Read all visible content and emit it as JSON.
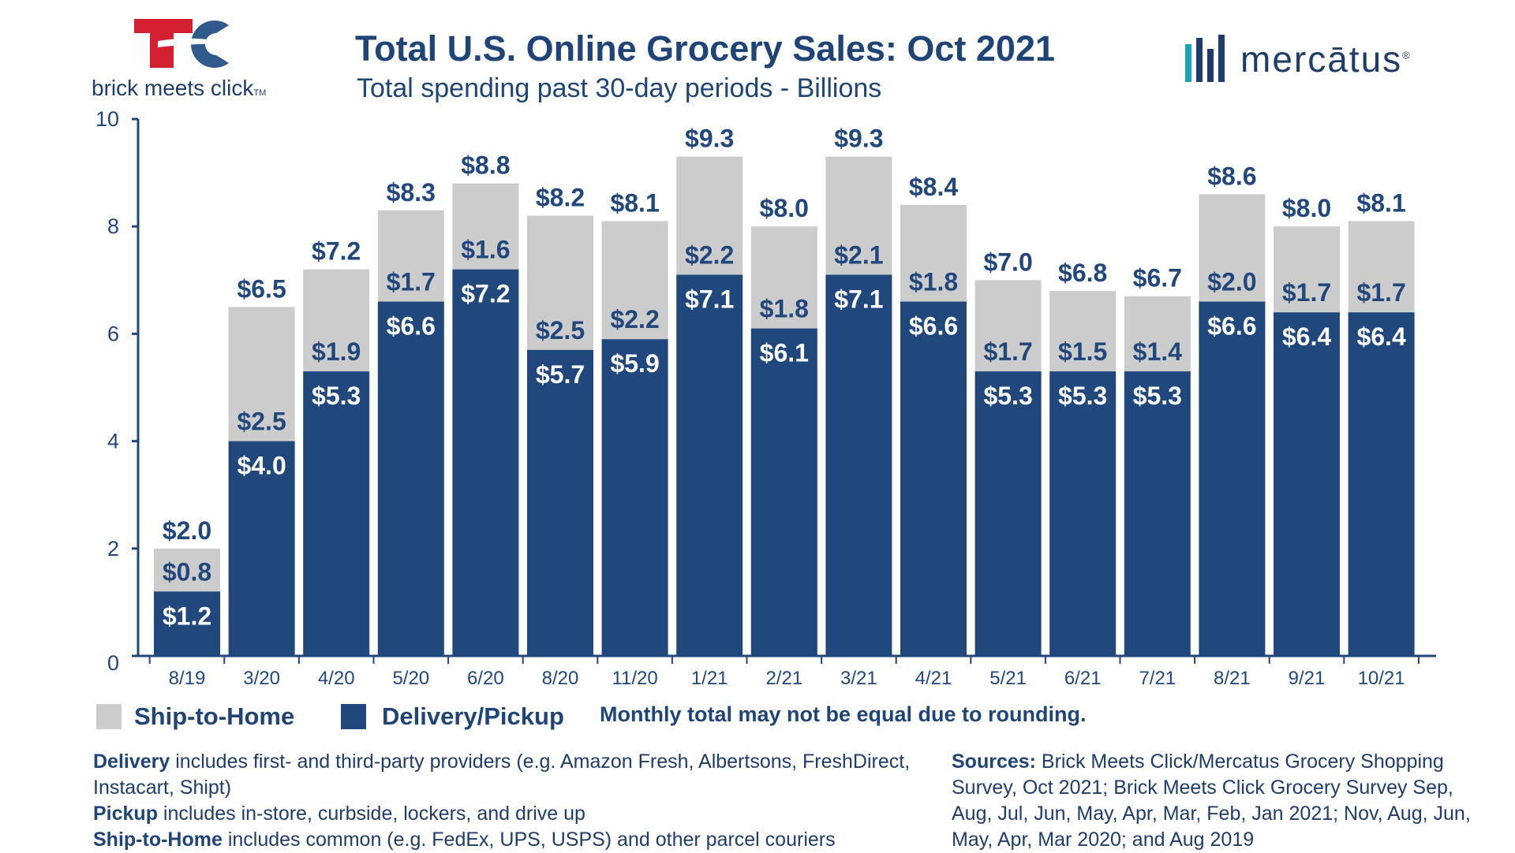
{
  "header": {
    "title": "Total U.S. Online Grocery Sales: Oct 2021",
    "subtitle": "Total spending past 30-day periods - Billions"
  },
  "logos": {
    "bmc_text": "brick meets click",
    "bmc_tm": "TM",
    "mercatus_text": "mercātus",
    "mercatus_reg": "®"
  },
  "colors": {
    "delivery": "#21487d",
    "ship": "#cccccc",
    "axis": "#21487d",
    "title": "#1f4477",
    "logo_red": "#d31f2f",
    "logo_blue": "#2f5a8c",
    "mercatus_teal": "#1aa3b5"
  },
  "legend": {
    "ship_label": "Ship-to-Home",
    "delivery_label": "Delivery/Pickup",
    "rounding_note": "Monthly total may not be equal due to rounding."
  },
  "notes": {
    "delivery_term": "Delivery",
    "delivery_text": " includes first- and third-party providers (e.g. Amazon Fresh, Albertsons, FreshDirect, Instacart, Shipt)",
    "pickup_term": "Pickup",
    "pickup_text": " includes in-store, curbside, lockers, and drive up",
    "ship_term": "Ship-to-Home",
    "ship_text": " includes common (e.g. FedEx, UPS, USPS) and other parcel couriers",
    "sources_term": "Sources:",
    "sources_text": " Brick Meets Click/Mercatus Grocery Shopping Survey, Oct 2021; Brick Meets Click Grocery Survey Sep, Aug, Jul, Jun, May, Apr, Mar, Feb, Jan 2021; Nov, Aug, Jun, May, Apr, Mar 2020; and Aug 2019"
  },
  "chart_data": {
    "type": "bar",
    "stacked": true,
    "categories": [
      "8/19",
      "3/20",
      "4/20",
      "5/20",
      "6/20",
      "8/20",
      "11/20",
      "1/21",
      "2/21",
      "3/21",
      "4/21",
      "5/21",
      "6/21",
      "7/21",
      "8/21",
      "9/21",
      "10/21"
    ],
    "series": [
      {
        "name": "Delivery/Pickup",
        "values": [
          1.2,
          4.0,
          5.3,
          6.6,
          7.2,
          5.7,
          5.9,
          7.1,
          6.1,
          7.1,
          6.6,
          5.3,
          5.3,
          5.3,
          6.6,
          6.4,
          6.4
        ],
        "labels": [
          "$1.2",
          "$4.0",
          "$5.3",
          "$6.6",
          "$7.2",
          "$5.7",
          "$5.9",
          "$7.1",
          "$6.1",
          "$7.1",
          "$6.6",
          "$5.3",
          "$5.3",
          "$5.3",
          "$6.6",
          "$6.4",
          "$6.4"
        ]
      },
      {
        "name": "Ship-to-Home",
        "values": [
          0.8,
          2.5,
          1.9,
          1.7,
          1.6,
          2.5,
          2.2,
          2.2,
          1.8,
          2.1,
          1.8,
          1.7,
          1.5,
          1.4,
          2.0,
          1.7,
          1.7
        ],
        "labels": [
          "$0.8",
          "$2.5",
          "$1.9",
          "$1.7",
          "$1.6",
          "$2.5",
          "$2.2",
          "$2.2",
          "$1.8",
          "$2.1",
          "$1.8",
          "$1.7",
          "$1.5",
          "$1.4",
          "$2.0",
          "$1.7",
          "$1.7"
        ]
      }
    ],
    "totals": [
      2.0,
      6.5,
      7.2,
      8.3,
      8.8,
      8.2,
      8.1,
      9.3,
      8.0,
      9.3,
      8.4,
      7.0,
      6.8,
      6.7,
      8.6,
      8.0,
      8.1
    ],
    "total_labels": [
      "$2.0",
      "$6.5",
      "$7.2",
      "$8.3",
      "$8.8",
      "$8.2",
      "$8.1",
      "$9.3",
      "$8.0",
      "$9.3",
      "$8.4",
      "$7.0",
      "$6.8",
      "$6.7",
      "$8.6",
      "$8.0",
      "$8.1"
    ],
    "ylim": [
      0,
      10
    ],
    "yticks": [
      "0",
      "2",
      "4",
      "6",
      "8",
      "10"
    ],
    "ytick_values": [
      0,
      2,
      4,
      6,
      8,
      10
    ],
    "grid": false,
    "legend_position": "bottom-left"
  }
}
